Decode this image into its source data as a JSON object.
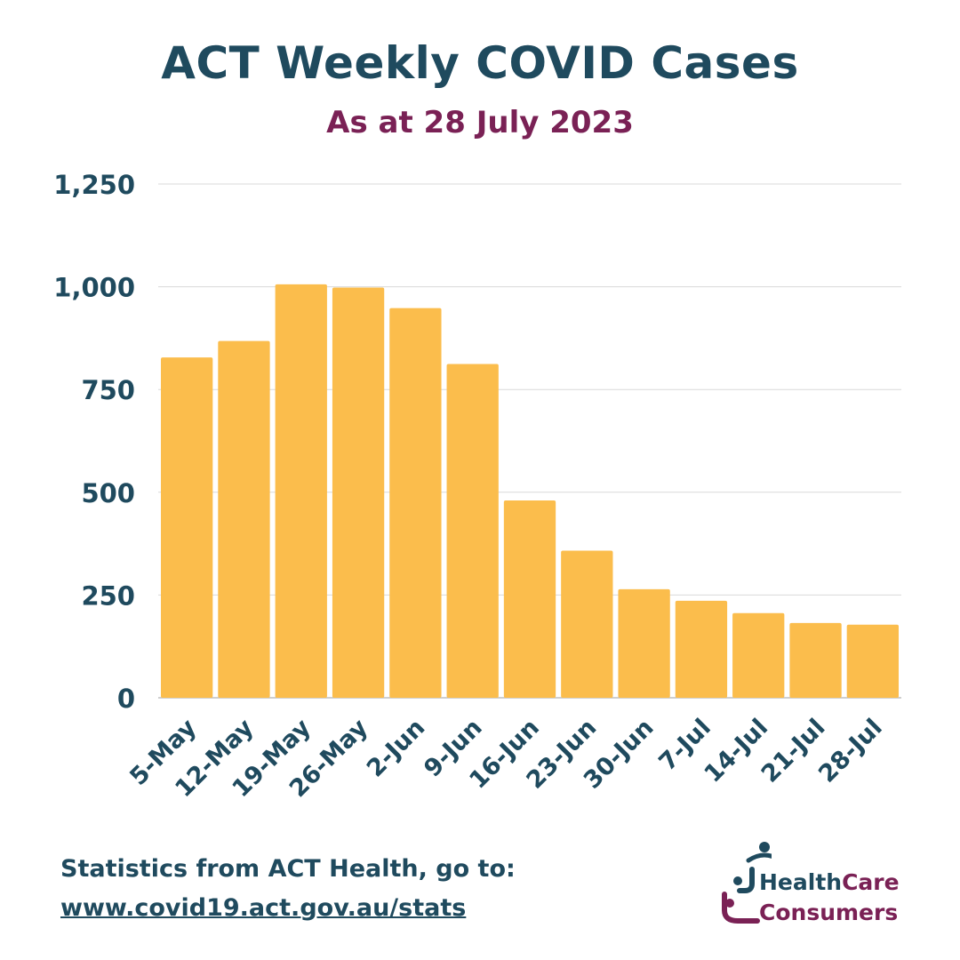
{
  "title": "ACT Weekly COVID Cases",
  "subtitle": "As at 28 July 2023",
  "colors": {
    "bar": "#fbbd4c",
    "text_primary": "#1f4a5e",
    "text_accent": "#7a2155",
    "grid": "#d9d9d9"
  },
  "chart_data": {
    "type": "bar",
    "categories": [
      "5-May",
      "12-May",
      "19-May",
      "26-May",
      "2-Jun",
      "9-Jun",
      "16-Jun",
      "23-Jun",
      "30-Jun",
      "7-Jul",
      "14-Jul",
      "21-Jul",
      "28-Jul"
    ],
    "values": [
      828,
      868,
      1006,
      998,
      948,
      812,
      480,
      358,
      264,
      236,
      206,
      182,
      178
    ],
    "ylim": [
      0,
      1250
    ],
    "yticks": [
      0,
      250,
      500,
      750,
      1000,
      1250
    ],
    "ytick_labels": [
      "0",
      "250",
      "500",
      "750",
      "1,000",
      "1,250"
    ],
    "grid": true,
    "xlabel": "",
    "ylabel": ""
  },
  "footer": {
    "source_text": "Statistics from ACT Health, go to:",
    "link_text": "www.covid19.act.gov.au/stats"
  },
  "logo": {
    "word_health": "Health",
    "word_care": "Care",
    "word_consumers": "Consumers"
  }
}
